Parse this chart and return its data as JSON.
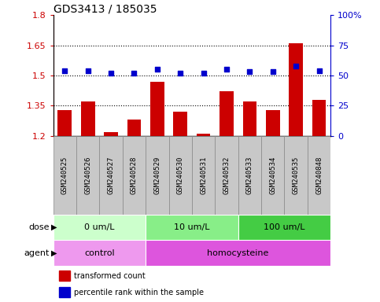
{
  "title": "GDS3413 / 185035",
  "samples": [
    "GSM240525",
    "GSM240526",
    "GSM240527",
    "GSM240528",
    "GSM240529",
    "GSM240530",
    "GSM240531",
    "GSM240532",
    "GSM240533",
    "GSM240534",
    "GSM240535",
    "GSM240848"
  ],
  "transformed_count": [
    1.33,
    1.37,
    1.22,
    1.28,
    1.47,
    1.32,
    1.21,
    1.42,
    1.37,
    1.33,
    1.66,
    1.38
  ],
  "percentile_rank": [
    54,
    54,
    52,
    52,
    55,
    52,
    52,
    55,
    53,
    53,
    58,
    54
  ],
  "bar_color": "#cc0000",
  "dot_color": "#0000cc",
  "ylim_left": [
    1.2,
    1.8
  ],
  "ylim_right": [
    0,
    100
  ],
  "yticks_left": [
    1.2,
    1.35,
    1.5,
    1.65,
    1.8
  ],
  "ytick_labels_left": [
    "1.2",
    "1.35",
    "1.5",
    "1.65",
    "1.8"
  ],
  "yticks_right": [
    0,
    25,
    50,
    75,
    100
  ],
  "ytick_labels_right": [
    "0",
    "25",
    "50",
    "75",
    "100%"
  ],
  "hlines": [
    1.35,
    1.5,
    1.65
  ],
  "dose_groups": [
    {
      "label": "0 um/L",
      "start": 0,
      "end": 4,
      "color": "#ccffcc"
    },
    {
      "label": "10 um/L",
      "start": 4,
      "end": 8,
      "color": "#88ee88"
    },
    {
      "label": "100 um/L",
      "start": 8,
      "end": 12,
      "color": "#44cc44"
    }
  ],
  "agent_groups": [
    {
      "label": "control",
      "start": 0,
      "end": 4,
      "color": "#ee99ee"
    },
    {
      "label": "homocysteine",
      "start": 4,
      "end": 12,
      "color": "#dd55dd"
    }
  ],
  "label_bg_color": "#c8c8c8",
  "label_border_color": "#888888",
  "legend_items": [
    {
      "color": "#cc0000",
      "label": "transformed count"
    },
    {
      "color": "#0000cc",
      "label": "percentile rank within the sample"
    }
  ],
  "bar_width": 0.6,
  "title_fontsize": 10,
  "tick_fontsize": 8,
  "label_fontsize": 6.5,
  "annot_fontsize": 8
}
